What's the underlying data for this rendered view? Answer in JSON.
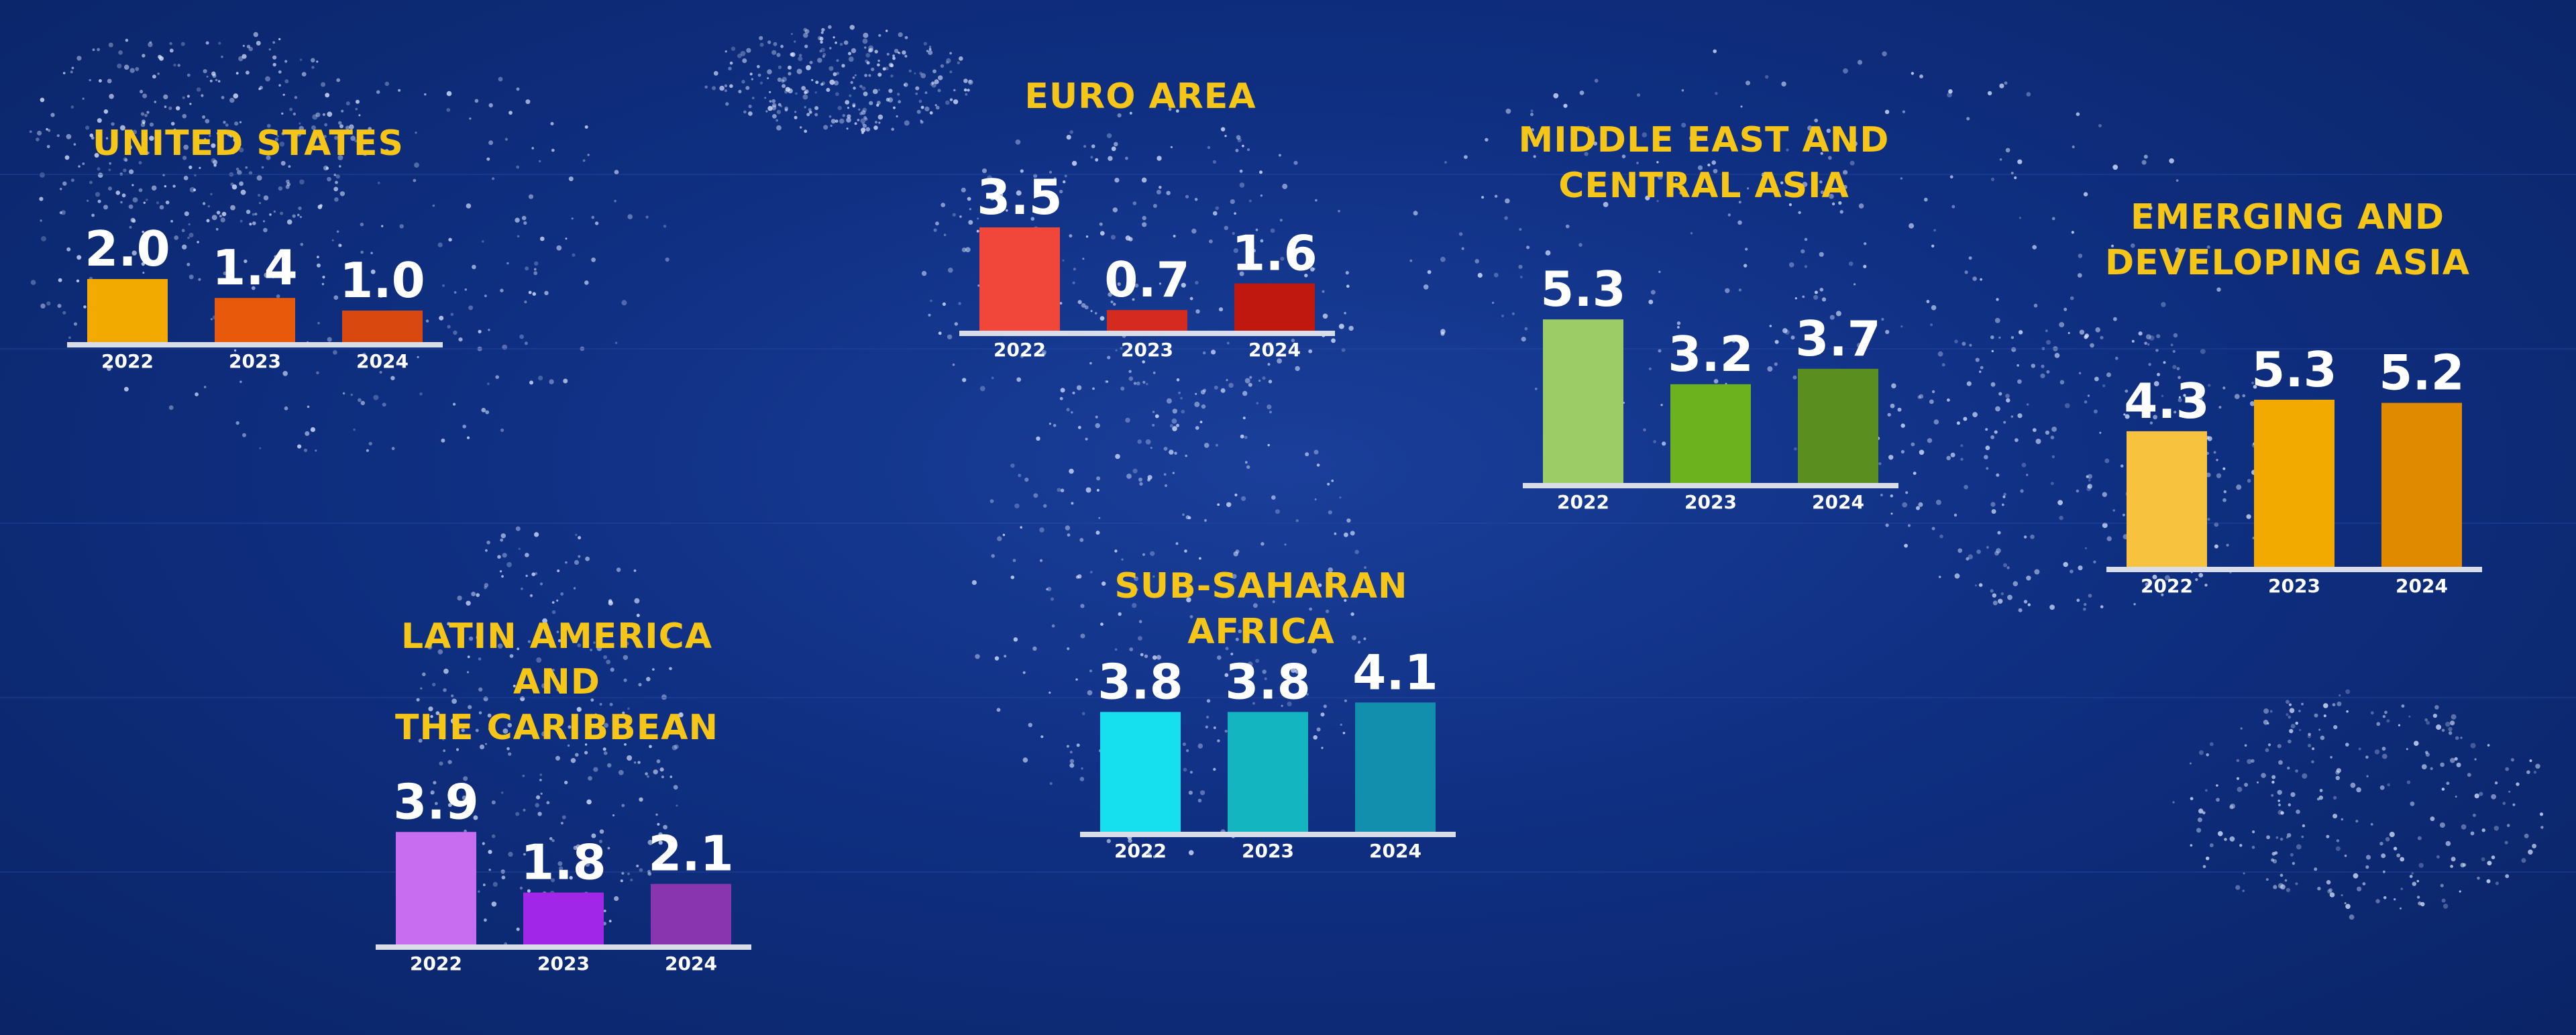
{
  "chart_data": [
    {
      "type": "bar",
      "title": "UNITED STATES",
      "categories": [
        "2022",
        "2023",
        "2024"
      ],
      "values": [
        2.0,
        1.4,
        1.0
      ],
      "value_labels": [
        "2.0",
        "1.4",
        "1.0"
      ],
      "colors": [
        "#f2a900",
        "#e8590c",
        "#d9480f"
      ]
    },
    {
      "type": "bar",
      "title": "EURO AREA",
      "categories": [
        "2022",
        "2023",
        "2024"
      ],
      "values": [
        3.5,
        0.7,
        1.6
      ],
      "value_labels": [
        "3.5",
        "0.7",
        "1.6"
      ],
      "colors": [
        "#f0473a",
        "#d42a20",
        "#c0170f"
      ]
    },
    {
      "type": "bar",
      "title": "MIDDLE EAST AND\nCENTRAL ASIA",
      "categories": [
        "2022",
        "2023",
        "2024"
      ],
      "values": [
        5.3,
        3.2,
        3.7
      ],
      "value_labels": [
        "5.3",
        "3.2",
        "3.7"
      ],
      "colors": [
        "#9ccc65",
        "#6cb21f",
        "#5a8f1f"
      ]
    },
    {
      "type": "bar",
      "title": "EMERGING AND\nDEVELOPING ASIA",
      "categories": [
        "2022",
        "2023",
        "2024"
      ],
      "values": [
        4.3,
        5.3,
        5.2
      ],
      "value_labels": [
        "4.3",
        "5.3",
        "5.2"
      ],
      "colors": [
        "#f7c23e",
        "#f2a900",
        "#e08a00"
      ]
    },
    {
      "type": "bar",
      "title": "LATIN AMERICA AND\nTHE CARIBBEAN",
      "categories": [
        "2022",
        "2023",
        "2024"
      ],
      "values": [
        3.9,
        1.8,
        2.1
      ],
      "value_labels": [
        "3.9",
        "1.8",
        "2.1"
      ],
      "colors": [
        "#c86df0",
        "#a226e8",
        "#8a35b0"
      ]
    },
    {
      "type": "bar",
      "title": "SUB-SAHARAN AFRICA",
      "categories": [
        "2022",
        "2023",
        "2024"
      ],
      "values": [
        3.8,
        3.8,
        4.1
      ],
      "value_labels": [
        "3.8",
        "3.8",
        "4.1"
      ],
      "colors": [
        "#16e0ee",
        "#12b5c0",
        "#128fad"
      ]
    }
  ]
}
